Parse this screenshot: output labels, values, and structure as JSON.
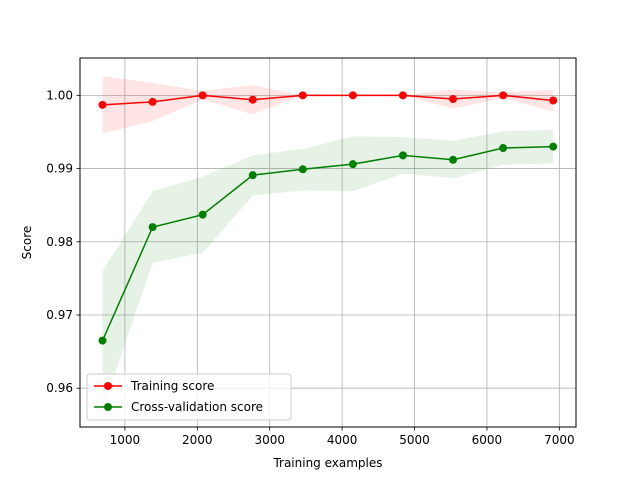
{
  "chart_data": {
    "type": "line",
    "xlabel": "Training examples",
    "ylabel": "Score",
    "xlim": [
      380,
      7230
    ],
    "ylim": [
      0.9547,
      1.0051
    ],
    "xticks": [
      1000,
      2000,
      3000,
      4000,
      5000,
      6000,
      7000
    ],
    "xtick_labels": [
      "1000",
      "2000",
      "3000",
      "4000",
      "5000",
      "6000",
      "7000"
    ],
    "yticks": [
      0.96,
      0.97,
      0.98,
      0.99,
      1.0
    ],
    "ytick_labels": [
      "0.96",
      "0.97",
      "0.98",
      "0.99",
      "1.00"
    ],
    "grid": true,
    "legend_position": "lower-left",
    "x": [
      691,
      1383,
      2074,
      2766,
      3457,
      4149,
      4840,
      5532,
      6223,
      6915
    ],
    "series": [
      {
        "name": "Training score",
        "color": "#ff0000",
        "band_color": "#ff0000",
        "values": [
          0.9987,
          0.9991,
          1.0,
          0.9994,
          1.0,
          1.0,
          1.0,
          0.9995,
          1.0,
          0.9993
        ],
        "lower": [
          0.9948,
          0.9965,
          0.9994,
          0.9974,
          1.0,
          1.0,
          1.0,
          0.9982,
          0.9996,
          0.9978
        ],
        "upper": [
          1.0026,
          1.0017,
          1.0006,
          1.0014,
          1.0,
          1.0,
          1.0,
          1.0008,
          1.0004,
          1.0008
        ]
      },
      {
        "name": "Cross-validation score",
        "color": "#008000",
        "band_color": "#008000",
        "values": [
          0.9665,
          0.982,
          0.9837,
          0.9891,
          0.9899,
          0.9906,
          0.9918,
          0.9912,
          0.9928,
          0.993
        ],
        "lower": [
          0.9571,
          0.9771,
          0.9785,
          0.9863,
          0.987,
          0.9869,
          0.9893,
          0.9887,
          0.9905,
          0.9907
        ],
        "upper": [
          0.976,
          0.9869,
          0.9889,
          0.9918,
          0.9927,
          0.9944,
          0.9943,
          0.9938,
          0.9951,
          0.9953
        ]
      }
    ]
  }
}
